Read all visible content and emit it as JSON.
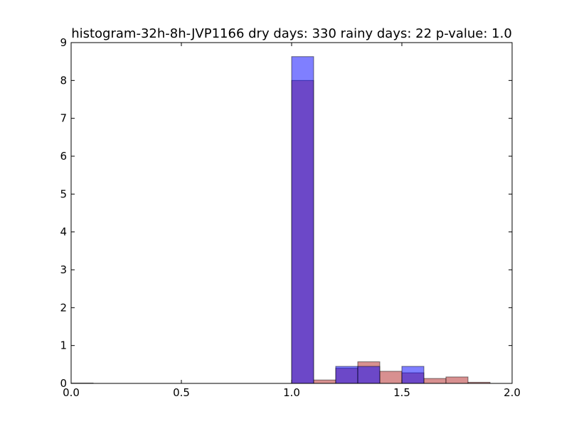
{
  "chart_data": {
    "type": "histogram",
    "title": "histogram-32h-8h-JVP1166 dry days: 330 rainy days: 22 p-value: 1.0",
    "xlabel": "",
    "ylabel": "",
    "xlim": [
      0.0,
      2.0
    ],
    "ylim": [
      0,
      9
    ],
    "x_ticks": [
      "0.0",
      "0.5",
      "1.0",
      "1.5",
      "2.0"
    ],
    "y_ticks": [
      "0",
      "1",
      "2",
      "3",
      "4",
      "5",
      "6",
      "7",
      "8",
      "9"
    ],
    "grid": false,
    "legend": "none",
    "series": [
      {
        "color": "#b22222",
        "bins": [
          {
            "x0": 0.0,
            "x1": 0.1,
            "value": 0.01
          },
          {
            "x0": 1.0,
            "x1": 1.1,
            "value": 8.0
          },
          {
            "x0": 1.1,
            "x1": 1.2,
            "value": 0.09
          },
          {
            "x0": 1.2,
            "x1": 1.3,
            "value": 0.4
          },
          {
            "x0": 1.3,
            "x1": 1.4,
            "value": 0.57
          },
          {
            "x0": 1.4,
            "x1": 1.5,
            "value": 0.32
          },
          {
            "x0": 1.5,
            "x1": 1.6,
            "value": 0.28
          },
          {
            "x0": 1.6,
            "x1": 1.7,
            "value": 0.13
          },
          {
            "x0": 1.7,
            "x1": 1.8,
            "value": 0.17
          },
          {
            "x0": 1.8,
            "x1": 1.9,
            "value": 0.03
          }
        ]
      },
      {
        "color": "#0000ff",
        "bins": [
          {
            "x0": 1.0,
            "x1": 1.1,
            "value": 8.63
          },
          {
            "x0": 1.2,
            "x1": 1.3,
            "value": 0.45
          },
          {
            "x0": 1.3,
            "x1": 1.4,
            "value": 0.45
          },
          {
            "x0": 1.5,
            "x1": 1.6,
            "value": 0.45
          }
        ]
      }
    ]
  }
}
